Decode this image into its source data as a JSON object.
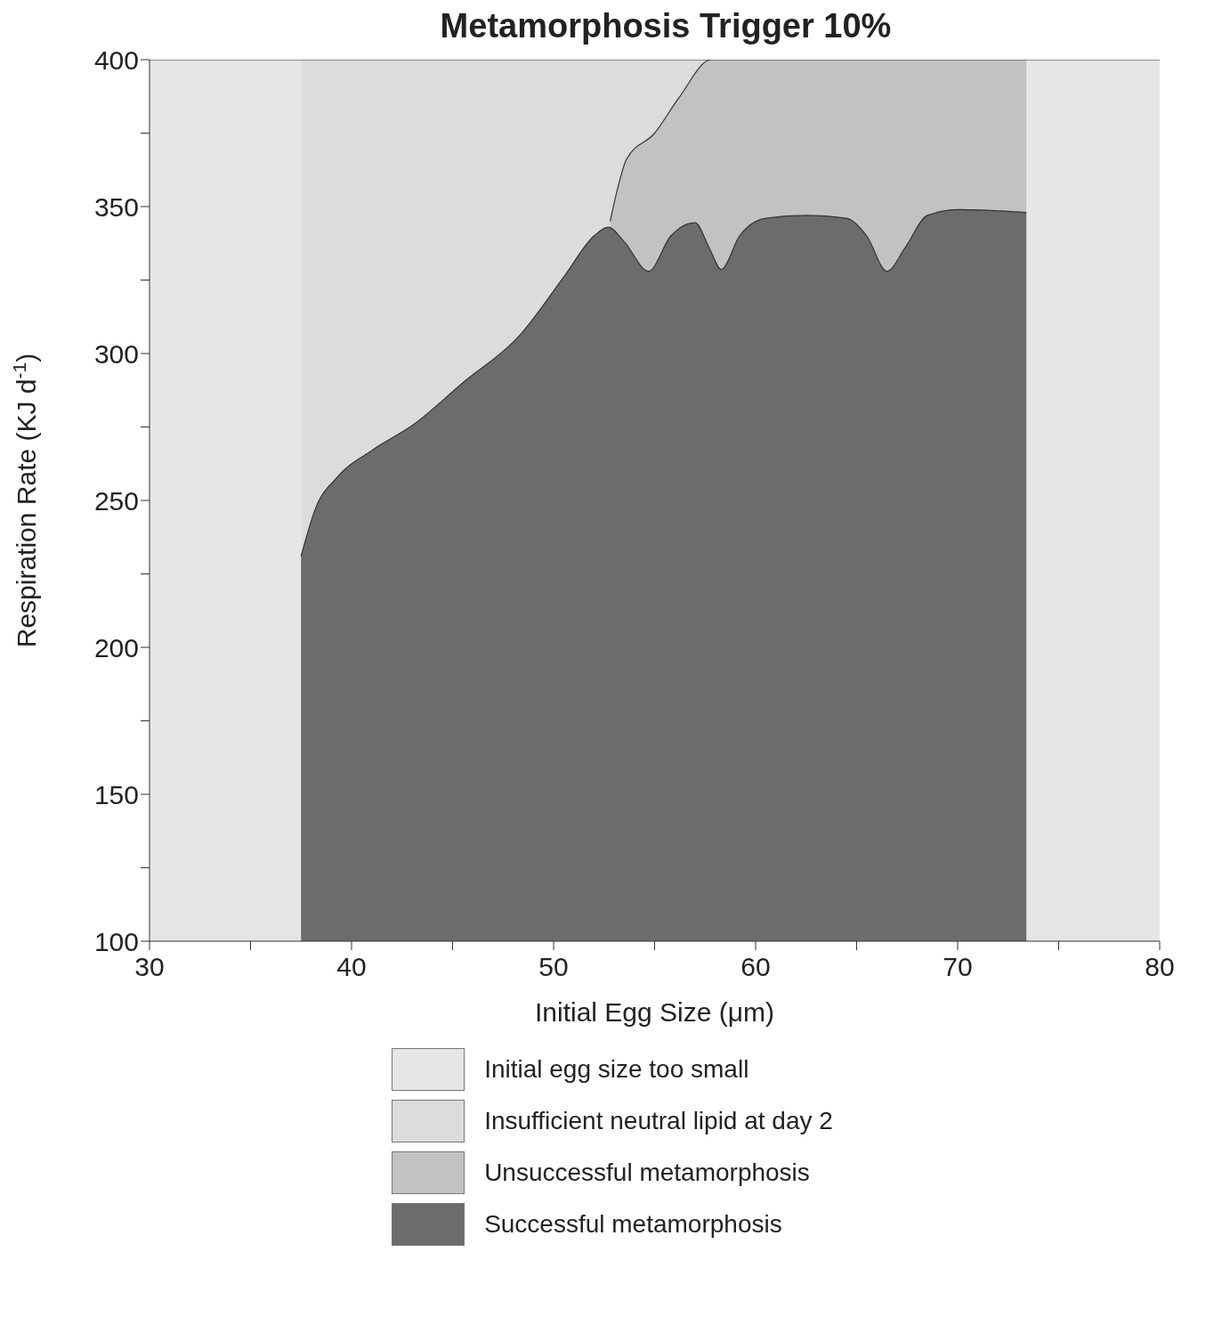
{
  "chart_data": {
    "type": "area",
    "title": "Metamorphosis Trigger 10%",
    "xlabel": "Initial Egg Size (μm)",
    "ylabel": "Respiration Rate (KJ d$^{-1}$)",
    "xlim": [
      30,
      80
    ],
    "xticks": [
      30,
      {
        "value": 35,
        "label": null
      },
      40,
      {
        "value": 45,
        "label": null
      },
      50,
      {
        "value": 55,
        "label": null
      },
      60,
      {
        "value": 65,
        "label": null
      },
      70,
      {
        "value": 75,
        "label": null
      },
      80
    ],
    "ylim": [
      100,
      400
    ],
    "yticks": [
      100,
      {
        "value": 125,
        "label": null
      },
      150,
      {
        "value": 175,
        "label": null
      },
      200,
      {
        "value": 225,
        "label": null
      },
      250,
      {
        "value": 275,
        "label": null
      },
      300,
      {
        "value": 325,
        "label": null
      },
      350,
      {
        "value": 375,
        "label": null
      },
      400
    ],
    "legend": "bottom",
    "series": [
      {
        "name": "Initial egg size too small",
        "color": "#e6e6e8",
        "x": [
          30,
          37.5,
          50,
          73.4,
          80
        ],
        "values": [
          400,
          400,
          null,
          400,
          400
        ]
      },
      {
        "name": "Insufficient neutral lipid at day 2",
        "color": "#dcdcde",
        "x": [
          37.5,
          57.8
        ],
        "values": [
          400,
          400
        ]
      },
      {
        "name": "Unsuccessful metamorphosis",
        "color": "#c2c2c4",
        "x": [
          52.8,
          53.2,
          53.6,
          55,
          56.2,
          57.8,
          73.4
        ],
        "values": [
          345,
          357,
          366,
          375,
          387,
          400,
          400
        ]
      },
      {
        "name": "Successful metamorphosis",
        "color": "#6c6c6e",
        "x": [
          37.5,
          38.2,
          39.3,
          41,
          43.1,
          45.5,
          48.3,
          50.5,
          52,
          52.7,
          53.5,
          54.7,
          55.8,
          57,
          57.7,
          58.3,
          59.2,
          60.5,
          62.5,
          64.5,
          65.5,
          66.5,
          67.4,
          68.5,
          70,
          73.4
        ],
        "values": [
          231,
          247,
          258,
          267,
          276,
          290,
          306,
          326,
          340,
          343,
          338,
          328,
          340,
          344.5,
          336,
          328.6,
          340,
          346,
          347,
          346,
          340,
          328,
          336,
          347,
          349,
          348
        ]
      }
    ]
  }
}
